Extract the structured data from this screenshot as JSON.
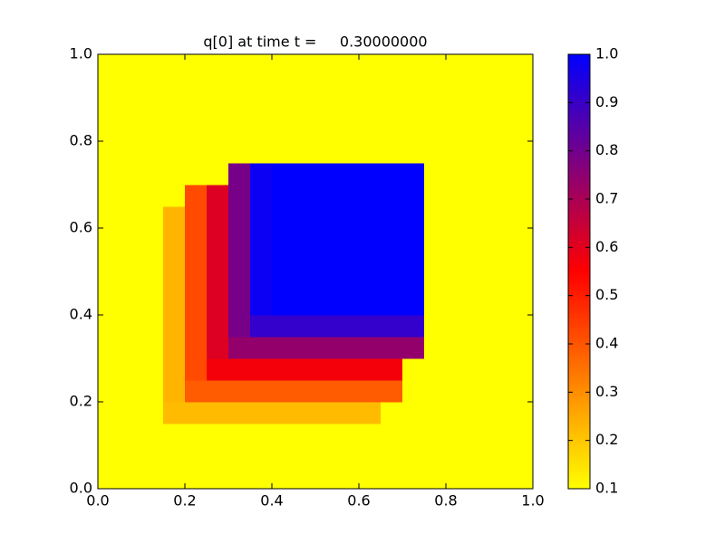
{
  "chart_data": {
    "type": "heatmap",
    "title": "q[0] at time t =     0.30000000",
    "xlim": [
      0,
      1
    ],
    "ylim": [
      0,
      1
    ],
    "xticks": [
      {
        "value": 0,
        "label": "0.0"
      },
      0.2,
      0.4,
      0.6,
      0.8,
      {
        "value": 1,
        "label": "1.0"
      }
    ],
    "yticks": [
      {
        "value": 0,
        "label": "0.0"
      },
      0.2,
      0.4,
      0.6,
      0.8,
      {
        "value": 1,
        "label": "1.0"
      }
    ],
    "colormap": [
      "#ffff00",
      "#ff0000",
      "#0000ff"
    ],
    "clim": [
      0.1,
      1.0
    ],
    "colorbar_ticks": [
      0.1,
      0.2,
      0.3,
      0.4,
      0.5,
      0.6,
      0.7,
      0.8,
      0.9,
      {
        "value": 1.0,
        "label": "1.0"
      }
    ],
    "z": [
      [
        0.1,
        0.1,
        0.1,
        0.1,
        0.1,
        0.1,
        0.1,
        0.1,
        0.1,
        0.1,
        0.1,
        0.1,
        0.1,
        0.1,
        0.1,
        0.1,
        0.1,
        0.1,
        0.1,
        0.1
      ],
      [
        0.1,
        0.1,
        0.1,
        0.1,
        0.1,
        0.1,
        0.1,
        0.1,
        0.1,
        0.1,
        0.1,
        0.1,
        0.1,
        0.1,
        0.1,
        0.1,
        0.1,
        0.1,
        0.1,
        0.1
      ],
      [
        0.1,
        0.1,
        0.1,
        0.1,
        0.1,
        0.1,
        0.1,
        0.1,
        0.1,
        0.1,
        0.1,
        0.1,
        0.1,
        0.1,
        0.1,
        0.1,
        0.1,
        0.1,
        0.1,
        0.1
      ],
      [
        0.1,
        0.1,
        0.1,
        0.22,
        0.22,
        0.22,
        0.22,
        0.22,
        0.22,
        0.22,
        0.22,
        0.22,
        0.22,
        0.1,
        0.1,
        0.1,
        0.1,
        0.1,
        0.1,
        0.1
      ],
      [
        0.1,
        0.1,
        0.1,
        0.23,
        0.39,
        0.39,
        0.39,
        0.39,
        0.39,
        0.39,
        0.39,
        0.39,
        0.39,
        0.39,
        0.1,
        0.1,
        0.1,
        0.1,
        0.1,
        0.1
      ],
      [
        0.1,
        0.1,
        0.1,
        0.23,
        0.42,
        0.57,
        0.57,
        0.57,
        0.57,
        0.57,
        0.57,
        0.57,
        0.57,
        0.57,
        0.1,
        0.1,
        0.1,
        0.1,
        0.1,
        0.1
      ],
      [
        0.1,
        0.1,
        0.1,
        0.23,
        0.42,
        0.61,
        0.74,
        0.74,
        0.74,
        0.74,
        0.74,
        0.74,
        0.74,
        0.74,
        0.74,
        0.1,
        0.1,
        0.1,
        0.1,
        0.1
      ],
      [
        0.1,
        0.1,
        0.1,
        0.23,
        0.42,
        0.61,
        0.79,
        0.91,
        0.91,
        0.91,
        0.91,
        0.91,
        0.91,
        0.91,
        0.91,
        0.1,
        0.1,
        0.1,
        0.1,
        0.1
      ],
      [
        0.1,
        0.1,
        0.1,
        0.23,
        0.42,
        0.61,
        0.79,
        0.98,
        1,
        1,
        1,
        1,
        1,
        1,
        1,
        0.1,
        0.1,
        0.1,
        0.1,
        0.1
      ],
      [
        0.1,
        0.1,
        0.1,
        0.23,
        0.42,
        0.61,
        0.79,
        0.98,
        1,
        1,
        1,
        1,
        1,
        1,
        1,
        0.1,
        0.1,
        0.1,
        0.1,
        0.1
      ],
      [
        0.1,
        0.1,
        0.1,
        0.23,
        0.42,
        0.61,
        0.79,
        0.98,
        1,
        1,
        1,
        1,
        1,
        1,
        1,
        0.1,
        0.1,
        0.1,
        0.1,
        0.1
      ],
      [
        0.1,
        0.1,
        0.1,
        0.23,
        0.42,
        0.61,
        0.79,
        0.98,
        1,
        1,
        1,
        1,
        1,
        1,
        1,
        0.1,
        0.1,
        0.1,
        0.1,
        0.1
      ],
      [
        0.1,
        0.1,
        0.1,
        0.23,
        0.42,
        0.61,
        0.79,
        0.98,
        1,
        1,
        1,
        1,
        1,
        1,
        1,
        0.1,
        0.1,
        0.1,
        0.1,
        0.1
      ],
      [
        0.1,
        0.1,
        0.1,
        0.1,
        0.42,
        0.61,
        0.79,
        0.98,
        1,
        1,
        1,
        1,
        1,
        1,
        1,
        0.1,
        0.1,
        0.1,
        0.1,
        0.1
      ],
      [
        0.1,
        0.1,
        0.1,
        0.1,
        0.1,
        0.1,
        0.79,
        0.98,
        1,
        1,
        1,
        1,
        1,
        1,
        1,
        0.1,
        0.1,
        0.1,
        0.1,
        0.1
      ],
      [
        0.1,
        0.1,
        0.1,
        0.1,
        0.1,
        0.1,
        0.1,
        0.1,
        0.1,
        0.1,
        0.1,
        0.1,
        0.1,
        0.1,
        0.1,
        0.1,
        0.1,
        0.1,
        0.1,
        0.1
      ],
      [
        0.1,
        0.1,
        0.1,
        0.1,
        0.1,
        0.1,
        0.1,
        0.1,
        0.1,
        0.1,
        0.1,
        0.1,
        0.1,
        0.1,
        0.1,
        0.1,
        0.1,
        0.1,
        0.1,
        0.1
      ],
      [
        0.1,
        0.1,
        0.1,
        0.1,
        0.1,
        0.1,
        0.1,
        0.1,
        0.1,
        0.1,
        0.1,
        0.1,
        0.1,
        0.1,
        0.1,
        0.1,
        0.1,
        0.1,
        0.1,
        0.1
      ],
      [
        0.1,
        0.1,
        0.1,
        0.1,
        0.1,
        0.1,
        0.1,
        0.1,
        0.1,
        0.1,
        0.1,
        0.1,
        0.1,
        0.1,
        0.1,
        0.1,
        0.1,
        0.1,
        0.1,
        0.1
      ],
      [
        0.1,
        0.1,
        0.1,
        0.1,
        0.1,
        0.1,
        0.1,
        0.1,
        0.1,
        0.1,
        0.1,
        0.1,
        0.1,
        0.1,
        0.1,
        0.1,
        0.1,
        0.1,
        0.1,
        0.1
      ]
    ]
  }
}
